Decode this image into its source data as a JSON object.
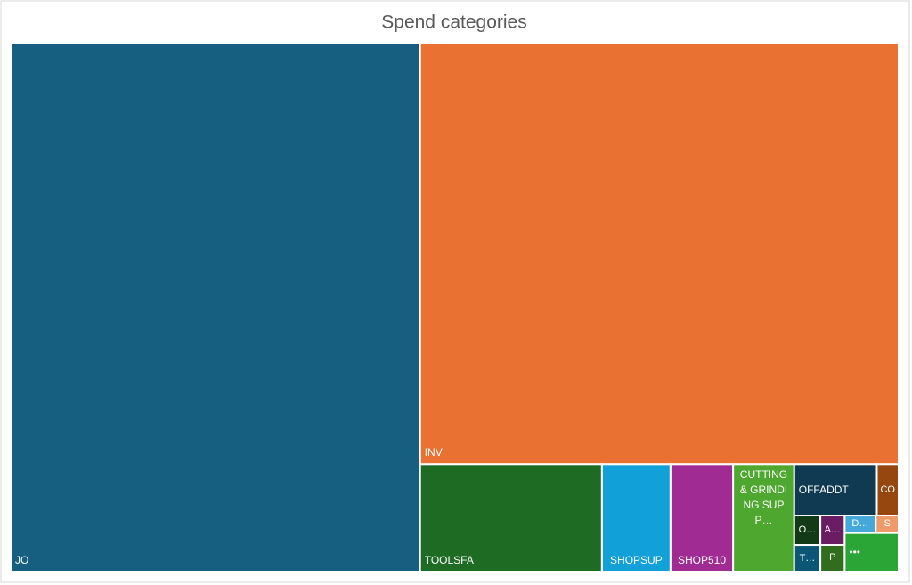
{
  "chart_data": {
    "type": "treemap",
    "title": "Spend categories",
    "categories": [
      "JO",
      "INV",
      "TOOLSFA",
      "SHOPSUP",
      "SHOP510",
      "CUTTING & GRINDING SUPP…",
      "OFFADDT",
      "CO",
      "O…",
      "T…",
      "A…",
      "P",
      "D…",
      "S",
      "•••"
    ],
    "values": [
      270.4,
      251.8,
      24.4,
      9.2,
      8.4,
      8.2,
      5.3,
      1.4,
      0.96,
      0.87,
      0.89,
      0.81,
      0.68,
      0.5,
      2.6
    ],
    "colors": [
      "#175f80",
      "#e97132",
      "#1e6b24",
      "#12a0d9",
      "#a02b93",
      "#4ea72e",
      "#0f3a52",
      "#96470f",
      "#133a16",
      "#0b5575",
      "#6a1d62",
      "#306e1d",
      "#44a9d9",
      "#ee9a6a",
      "#2aa636"
    ]
  }
}
